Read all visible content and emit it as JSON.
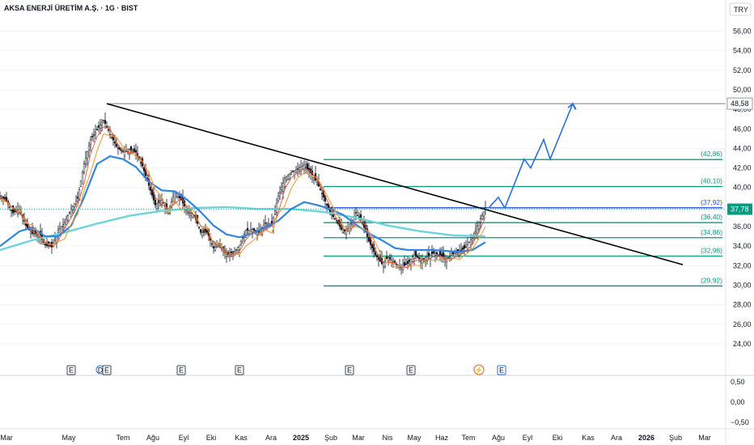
{
  "header": {
    "title": "AKSA ENERJİ ÜRETİM A.Ş. · 1G · BIST"
  },
  "currency": "TRY",
  "colors": {
    "up": "#131722",
    "down": "#131722",
    "trend": "#000000",
    "fib": "#089981",
    "ma_long": "#6cd4d9",
    "ma_mid": "#2f86e0",
    "ma_fast": "#f59a3c",
    "ma_faster": "#e8563a",
    "projection": "#2a6fdb",
    "price_tag": "#089981"
  },
  "chart_data": {
    "type": "line",
    "title": "AKSA ENERJİ ÜRETİM A.Ş. · 1G · BIST",
    "yaxis_ticks": [
      "56,00",
      "54,00",
      "52,00",
      "50,00",
      "48,00",
      "46,00",
      "44,00",
      "42,00",
      "40,00",
      "38,00",
      "36,00",
      "34,00",
      "32,00",
      "30,00",
      "28,00",
      "26,00",
      "24,00"
    ],
    "ylim": [
      23,
      57.2
    ],
    "xaxis_labels": [
      "Mar",
      "May",
      "Tem",
      "Ağu",
      "Eyl",
      "Eki",
      "Kas",
      "Ara",
      "2025",
      "Şub",
      "Mar",
      "Nis",
      "May",
      "Haz",
      "Tem",
      "Ağu",
      "Eyl",
      "Eki",
      "Kas",
      "Ara",
      "2026",
      "Şub",
      "Mar"
    ],
    "price": [
      [
        0,
        39.2
      ],
      [
        2,
        38.6
      ],
      [
        4,
        37.4
      ],
      [
        6,
        37.8
      ],
      [
        8,
        36.1
      ],
      [
        10,
        35.3
      ],
      [
        12,
        35.2
      ],
      [
        14,
        34.1
      ],
      [
        16,
        33.9
      ],
      [
        18,
        35.6
      ],
      [
        20,
        36.4
      ],
      [
        22,
        37.8
      ],
      [
        24,
        38.9
      ],
      [
        26,
        42.4
      ],
      [
        28,
        44.9
      ],
      [
        30,
        45.9
      ],
      [
        32,
        46.9
      ],
      [
        34,
        45.5
      ],
      [
        36,
        44.2
      ],
      [
        38,
        43.6
      ],
      [
        40,
        43.9
      ],
      [
        42,
        43.6
      ],
      [
        44,
        42.2
      ],
      [
        46,
        40.2
      ],
      [
        48,
        38.2
      ],
      [
        50,
        38.7
      ],
      [
        52,
        37.4
      ],
      [
        54,
        39.6
      ],
      [
        56,
        38.7
      ],
      [
        58,
        37.5
      ],
      [
        60,
        37.2
      ],
      [
        62,
        35.4
      ],
      [
        64,
        35.4
      ],
      [
        66,
        33.8
      ],
      [
        68,
        34.2
      ],
      [
        70,
        33.0
      ],
      [
        72,
        33.2
      ],
      [
        74,
        34.1
      ],
      [
        76,
        35.6
      ],
      [
        78,
        35.7
      ],
      [
        80,
        35.4
      ],
      [
        82,
        36.4
      ],
      [
        84,
        36.1
      ],
      [
        86,
        39.1
      ],
      [
        88,
        40.9
      ],
      [
        90,
        41.5
      ],
      [
        92,
        41.9
      ],
      [
        94,
        42.3
      ],
      [
        96,
        41.5
      ],
      [
        98,
        40.5
      ],
      [
        100,
        39.0
      ],
      [
        102,
        37.4
      ],
      [
        104,
        36.6
      ],
      [
        106,
        35.4
      ],
      [
        108,
        35.9
      ],
      [
        110,
        37.4
      ],
      [
        112,
        36.4
      ],
      [
        114,
        34.5
      ],
      [
        116,
        33.1
      ],
      [
        118,
        32.2
      ],
      [
        120,
        32.8
      ],
      [
        122,
        32.3
      ],
      [
        124,
        31.8
      ],
      [
        126,
        32.2
      ],
      [
        128,
        33.1
      ],
      [
        130,
        32.6
      ],
      [
        132,
        32.9
      ],
      [
        134,
        33.3
      ],
      [
        136,
        33.1
      ],
      [
        138,
        32.7
      ],
      [
        140,
        33.2
      ],
      [
        142,
        33.4
      ],
      [
        144,
        33.9
      ],
      [
        146,
        34.9
      ],
      [
        148,
        36.4
      ],
      [
        150,
        37.9
      ]
    ],
    "ma_long": [
      [
        0,
        33.6
      ],
      [
        10,
        34.6
      ],
      [
        20,
        35.4
      ],
      [
        30,
        36.3
      ],
      [
        40,
        37.1
      ],
      [
        50,
        37.6
      ],
      [
        60,
        37.9
      ],
      [
        70,
        38.0
      ],
      [
        80,
        37.8
      ],
      [
        90,
        37.8
      ],
      [
        100,
        37.5
      ],
      [
        110,
        36.9
      ],
      [
        120,
        36.1
      ],
      [
        130,
        35.5
      ],
      [
        140,
        35.1
      ],
      [
        150,
        35.0
      ]
    ],
    "ma_mid": [
      [
        0,
        34.0
      ],
      [
        6,
        35.5
      ],
      [
        10,
        35.9
      ],
      [
        14,
        35.0
      ],
      [
        18,
        35.0
      ],
      [
        22,
        36.1
      ],
      [
        26,
        39.0
      ],
      [
        30,
        42.4
      ],
      [
        34,
        43.2
      ],
      [
        38,
        42.9
      ],
      [
        42,
        42.1
      ],
      [
        46,
        40.6
      ],
      [
        50,
        39.7
      ],
      [
        54,
        39.6
      ],
      [
        58,
        38.7
      ],
      [
        62,
        37.5
      ],
      [
        66,
        36.1
      ],
      [
        70,
        35.2
      ],
      [
        74,
        34.9
      ],
      [
        78,
        35.3
      ],
      [
        82,
        35.9
      ],
      [
        86,
        36.6
      ],
      [
        90,
        37.8
      ],
      [
        94,
        38.5
      ],
      [
        98,
        38.2
      ],
      [
        102,
        37.8
      ],
      [
        106,
        37.2
      ],
      [
        110,
        36.2
      ],
      [
        114,
        35.3
      ],
      [
        118,
        34.6
      ],
      [
        122,
        33.8
      ],
      [
        126,
        33.6
      ],
      [
        130,
        33.6
      ],
      [
        134,
        33.6
      ],
      [
        138,
        33.5
      ],
      [
        142,
        33.4
      ],
      [
        146,
        33.6
      ],
      [
        150,
        34.4
      ]
    ],
    "trendline": [
      [
        33,
        48.58
      ],
      [
        211,
        32.1
      ]
    ],
    "resistance": 48.58,
    "fib_levels": [
      {
        "label": "(42,86)",
        "value": 42.86
      },
      {
        "label": "(40,10)",
        "value": 40.1
      },
      {
        "label": "(37,92)",
        "value": 37.92
      },
      {
        "label": "(36,40)",
        "value": 36.4
      },
      {
        "label": "(34,86)",
        "value": 34.86
      },
      {
        "label": "(32,98)",
        "value": 32.98
      },
      {
        "label": "(29,92)",
        "value": 29.92
      }
    ],
    "projection": [
      [
        151,
        37.9
      ],
      [
        154,
        39.0
      ],
      [
        156,
        37.9
      ],
      [
        162,
        42.9
      ],
      [
        164,
        42.0
      ],
      [
        168,
        44.9
      ],
      [
        170,
        42.9
      ],
      [
        177,
        48.58
      ],
      [
        178,
        48.0
      ]
    ],
    "last_price": {
      "label": "37,78",
      "value": 37.78
    },
    "resistance_tag": {
      "label": "48,58",
      "value": 48.58
    },
    "events": [
      {
        "t": 22,
        "label": "E"
      },
      {
        "t": 31,
        "label": "D"
      },
      {
        "t": 33,
        "label": "E"
      },
      {
        "t": 56,
        "label": "E"
      },
      {
        "t": 74,
        "label": "E"
      },
      {
        "t": 108,
        "label": "E"
      },
      {
        "t": 127,
        "label": "E"
      },
      {
        "t": 148,
        "label": "⚡"
      },
      {
        "t": 155,
        "label": "E"
      }
    ],
    "oscillator": {
      "ticks": [
        "0,50",
        "0,00",
        "−0,50"
      ],
      "ylim": [
        -0.62,
        0.62
      ]
    }
  }
}
